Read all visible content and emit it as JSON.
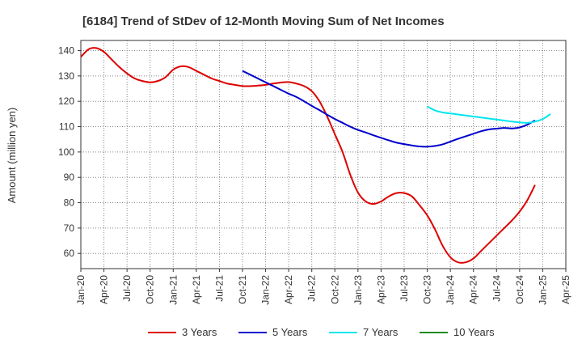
{
  "chart_data": {
    "type": "line",
    "title": "[6184]  Trend of StDev of 12-Month Moving Sum of Net Incomes",
    "ylabel": "Amount (million yen)",
    "xlabel": "",
    "ylim": [
      54,
      144
    ],
    "y_ticks": [
      60,
      70,
      80,
      90,
      100,
      110,
      120,
      130,
      140
    ],
    "x_tick_labels": [
      "Jan-20",
      "Apr-20",
      "Jul-20",
      "Oct-20",
      "Jan-21",
      "Apr-21",
      "Jul-21",
      "Oct-21",
      "Jan-22",
      "Apr-22",
      "Jul-22",
      "Oct-22",
      "Jan-23",
      "Apr-23",
      "Jul-23",
      "Oct-23",
      "Jan-24",
      "Apr-24",
      "Jul-24",
      "Oct-24",
      "Jan-25",
      "Apr-25"
    ],
    "grid": true,
    "legend_position": "bottom",
    "series": [
      {
        "name": "3 Years",
        "color": "#dd0000",
        "start_index": 0,
        "values": [
          137.5,
          140.5,
          141,
          139.5,
          136.5,
          133.5,
          131,
          129,
          128,
          127.5,
          128,
          129.5,
          132.5,
          133.8,
          133.5,
          132,
          130.5,
          129,
          128,
          127,
          126.5,
          126,
          126,
          126.2,
          126.5,
          127,
          127.4,
          127.6,
          127,
          126,
          124,
          120,
          114,
          107,
          100,
          91,
          84,
          80.5,
          79.5,
          80.5,
          82.5,
          83.8,
          83.8,
          82.5,
          79,
          75,
          69.5,
          63,
          58.5,
          56.5,
          56.5,
          58,
          61,
          64,
          67,
          70,
          73,
          76.5,
          81,
          87
        ]
      },
      {
        "name": "5 Years",
        "color": "#0000cc",
        "start_index": 21,
        "values": [
          132,
          130.5,
          129,
          127.5,
          126,
          124.5,
          123,
          121.7,
          120,
          118.2,
          116.5,
          114.7,
          113,
          111.5,
          110,
          108.7,
          107.7,
          106.6,
          105.6,
          104.6,
          103.7,
          103.1,
          102.6,
          102.2,
          102.1,
          102.4,
          103,
          104.1,
          105.2,
          106.2,
          107.2,
          108.2,
          108.9,
          109.2,
          109.5,
          109.3,
          109.7,
          110.8,
          112.5
        ]
      },
      {
        "name": "7 Years",
        "color": "#00e5ee",
        "start_index": 45,
        "values": [
          118,
          116.4,
          115.6,
          115.2,
          114.8,
          114.4,
          114,
          113.6,
          113.2,
          112.8,
          112.4,
          112,
          111.7,
          111.5,
          112,
          113,
          115
        ]
      },
      {
        "name": "10 Years",
        "color": "#228b22",
        "start_index": 0,
        "values": []
      }
    ]
  }
}
